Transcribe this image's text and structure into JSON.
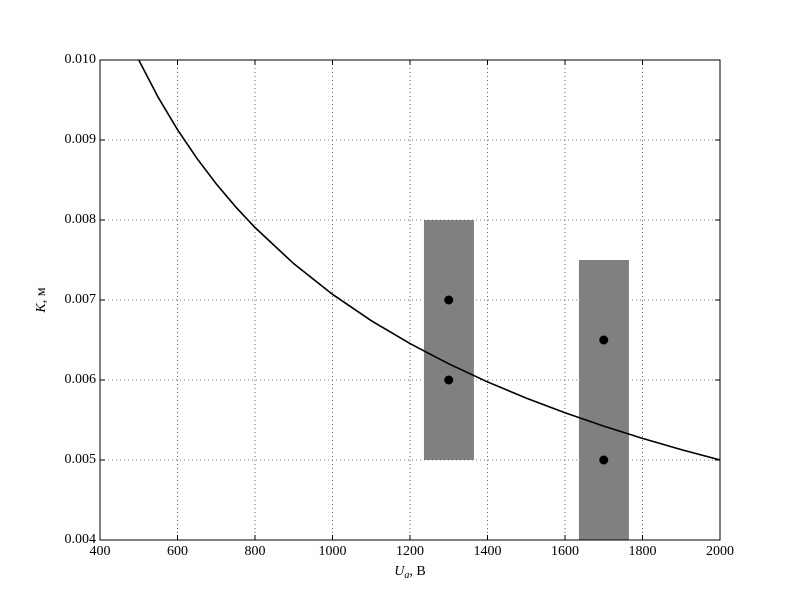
{
  "chart_data": {
    "type": "line",
    "xlabel": {
      "symbol": "U",
      "subscript": "a",
      "unit": ", В"
    },
    "ylabel": {
      "symbol": "K",
      "unit": ", м"
    },
    "xlim": [
      400,
      2000
    ],
    "ylim": [
      0.004,
      0.01
    ],
    "xticks": [
      400,
      600,
      800,
      1000,
      1200,
      1400,
      1600,
      1800,
      2000
    ],
    "yticks": [
      0.004,
      0.005,
      0.006,
      0.007,
      0.008,
      0.009,
      {
        "value": 0.01,
        "label": "0.010"
      }
    ],
    "grid": true,
    "series": [
      {
        "color": "#000000",
        "x": [
          500,
          550,
          600,
          650,
          700,
          750,
          800,
          900,
          1000,
          1100,
          1200,
          1300,
          1400,
          1500,
          1600,
          1700,
          1800,
          1900,
          2000
        ],
        "values": [
          0.01,
          0.009535,
          0.009129,
          0.008771,
          0.008452,
          0.008165,
          0.007906,
          0.007454,
          0.007071,
          0.006742,
          0.006455,
          0.006202,
          0.005976,
          0.005774,
          0.00559,
          0.005423,
          0.00527,
          0.00513,
          0.005
        ]
      }
    ],
    "rects": [
      {
        "color": "#808080",
        "x0": 1236,
        "x1": 1365,
        "y0": 0.005,
        "y1": 0.008
      },
      {
        "color": "#808080",
        "x0": 1636,
        "x1": 1765,
        "y0": 0.004,
        "y1": 0.0075
      }
    ],
    "points": {
      "color": "#000000",
      "x": [
        1300,
        1300,
        1700,
        1700
      ],
      "values": [
        0.007,
        0.006,
        0.0065,
        0.005
      ]
    }
  }
}
